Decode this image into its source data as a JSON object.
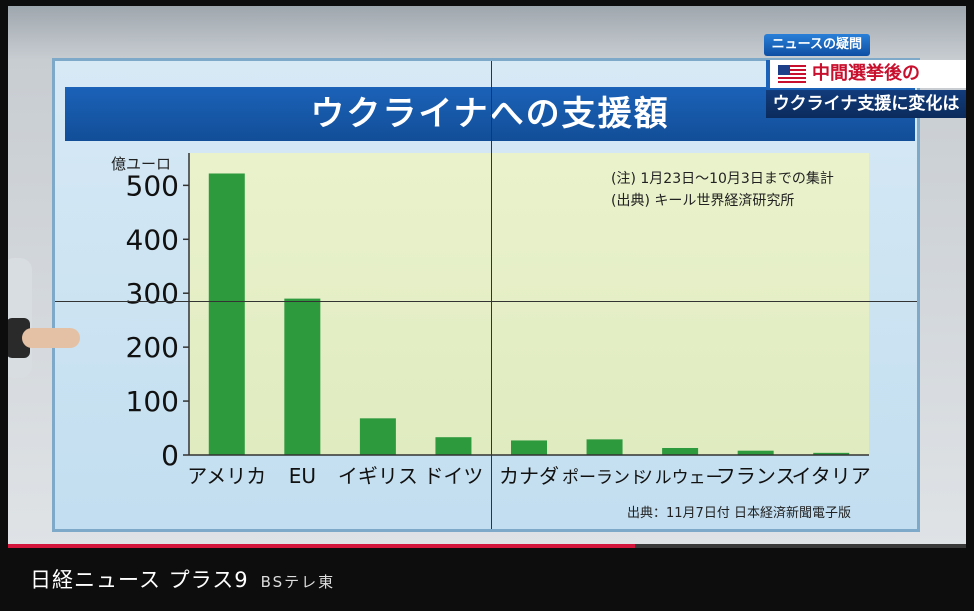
{
  "overlay": {
    "brand": "ニュースの疑問",
    "line1": "中間選挙後の",
    "line2": "ウクライナ支援に変化は"
  },
  "chart_data": {
    "type": "bar",
    "title": "ウクライナへの支援額",
    "unit_label": "億ユーロ",
    "categories": [
      "アメリカ",
      "EU",
      "イギリス",
      "ドイツ",
      "カナダ",
      "ポーランド",
      "ノルウェー",
      "フランス",
      "イタリア"
    ],
    "values": [
      522,
      290,
      68,
      33,
      27,
      29,
      13,
      8,
      4
    ],
    "yticks": [
      0,
      100,
      200,
      300,
      400,
      500
    ],
    "ylim": [
      0,
      560
    ],
    "note1": "(注) 1月23日～10月3日までの集計",
    "note2": "(出典) キール世界経済研究所",
    "source": "出典：11月7日付  日本経済新聞電子版",
    "colors": {
      "bar": "#2e9a3e",
      "plot_bg": "#e6f0c8"
    }
  },
  "progress": {
    "fraction": 0.655,
    "color": "#d4163c"
  },
  "caption": {
    "program": "日経ニュース プラス9",
    "channel": "BSテレ東"
  }
}
